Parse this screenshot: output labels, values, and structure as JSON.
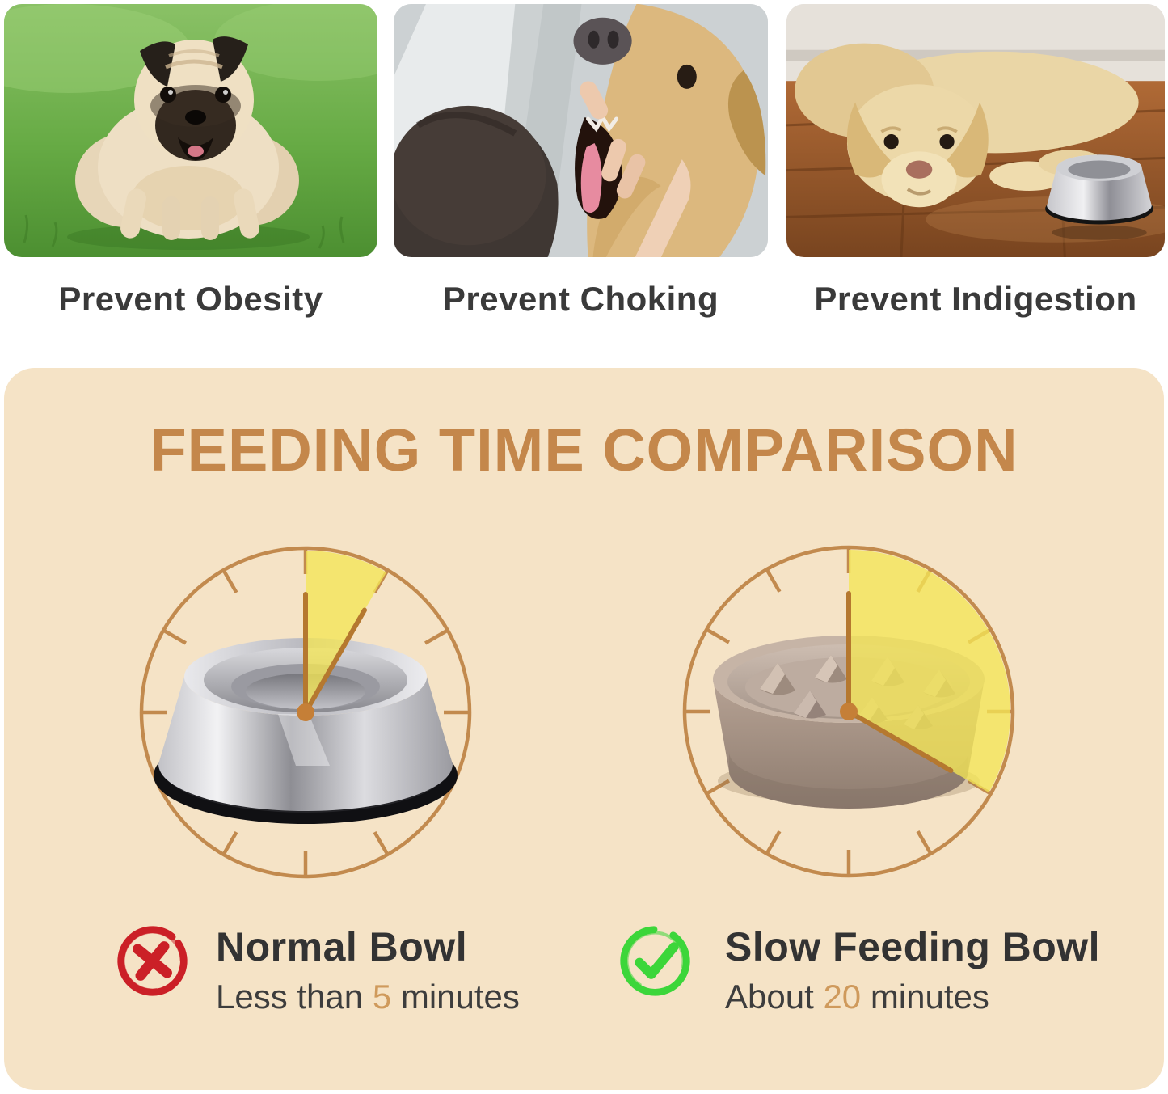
{
  "benefits": {
    "items": [
      {
        "label": "Prevent Obesity",
        "photo": "obese-pug-on-grass-photo"
      },
      {
        "label": "Prevent Choking",
        "photo": "dog-mouth-check-photo"
      },
      {
        "label": "Prevent Indigestion",
        "photo": "dog-lying-by-empty-bowl-photo"
      }
    ]
  },
  "comparison": {
    "title": "FEEDING TIME COMPARISON",
    "clocks": [
      {
        "name": "normal-bowl-clock",
        "bowl_image": "stainless-steel-normal-bowl",
        "minutes": 5
      },
      {
        "name": "slow-feeding-bowl-clock",
        "bowl_image": "slow-feeder-maze-bowl",
        "minutes": 20
      }
    ],
    "labels": [
      {
        "icon": "x-mark-icon",
        "title": "Normal Bowl",
        "time_prefix": "Less than ",
        "time_value": "5",
        "time_suffix": " minutes"
      },
      {
        "icon": "check-mark-icon",
        "title": "Slow Feeding Bowl",
        "time_prefix": "About ",
        "time_value": "20",
        "time_suffix": " minutes"
      }
    ]
  },
  "colors": {
    "panel_bg": "#f5e3c6",
    "title_accent": "#c4874b",
    "clock_ring": "#c28a4e",
    "clock_hand": "#b5782f",
    "clock_dot": "#c57f37",
    "wedge_yellow": "#f4e556",
    "x_red": "#cb2027",
    "check_green": "#3cd63a",
    "accent_number": "#cf9a5c"
  }
}
